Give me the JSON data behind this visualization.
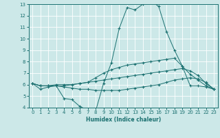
{
  "title": "",
  "xlabel": "Humidex (Indice chaleur)",
  "bg_color": "#cce8e8",
  "grid_color": "#ffffff",
  "line_color": "#1a7070",
  "xlim": [
    -0.5,
    23.5
  ],
  "ylim": [
    4,
    13
  ],
  "xticks": [
    0,
    1,
    2,
    3,
    4,
    5,
    6,
    7,
    8,
    9,
    10,
    11,
    12,
    13,
    14,
    15,
    16,
    17,
    18,
    19,
    20,
    21,
    22,
    23
  ],
  "yticks": [
    4,
    5,
    6,
    7,
    8,
    9,
    10,
    11,
    12,
    13
  ],
  "lines": [
    {
      "x": [
        0,
        1,
        2,
        3,
        4,
        5,
        6,
        7,
        8,
        9,
        10,
        11,
        12,
        13,
        14,
        15,
        16,
        17,
        18,
        19,
        20,
        21,
        22,
        23
      ],
      "y": [
        6.1,
        5.6,
        5.8,
        5.9,
        4.8,
        4.7,
        4.1,
        3.8,
        3.7,
        6.1,
        7.9,
        10.9,
        12.7,
        12.5,
        13.0,
        13.3,
        12.8,
        10.6,
        9.0,
        7.6,
        5.9,
        5.9,
        5.8,
        5.6
      ]
    },
    {
      "x": [
        0,
        1,
        2,
        3,
        4,
        5,
        6,
        7,
        8,
        9,
        10,
        11,
        12,
        13,
        14,
        15,
        16,
        17,
        18,
        19,
        20,
        21,
        22,
        23
      ],
      "y": [
        6.1,
        5.9,
        5.9,
        6.0,
        6.0,
        6.0,
        6.1,
        6.2,
        6.6,
        7.0,
        7.3,
        7.5,
        7.7,
        7.8,
        7.9,
        8.0,
        8.1,
        8.2,
        8.3,
        7.6,
        6.9,
        6.4,
        5.9,
        5.6
      ]
    },
    {
      "x": [
        0,
        1,
        2,
        3,
        4,
        5,
        6,
        7,
        8,
        9,
        10,
        11,
        12,
        13,
        14,
        15,
        16,
        17,
        18,
        19,
        20,
        21,
        22,
        23
      ],
      "y": [
        6.1,
        5.9,
        5.9,
        5.9,
        5.8,
        5.7,
        5.6,
        5.6,
        5.5,
        5.5,
        5.5,
        5.5,
        5.6,
        5.7,
        5.8,
        5.9,
        6.0,
        6.2,
        6.4,
        6.5,
        6.6,
        6.5,
        6.2,
        5.6
      ]
    },
    {
      "x": [
        0,
        1,
        2,
        3,
        4,
        5,
        6,
        7,
        8,
        9,
        10,
        11,
        12,
        13,
        14,
        15,
        16,
        17,
        18,
        19,
        20,
        21,
        22,
        23
      ],
      "y": [
        6.1,
        5.9,
        5.9,
        5.9,
        5.9,
        6.0,
        6.1,
        6.2,
        6.3,
        6.4,
        6.5,
        6.6,
        6.7,
        6.8,
        6.9,
        7.0,
        7.1,
        7.2,
        7.3,
        7.4,
        7.2,
        6.8,
        6.1,
        5.6
      ]
    }
  ]
}
